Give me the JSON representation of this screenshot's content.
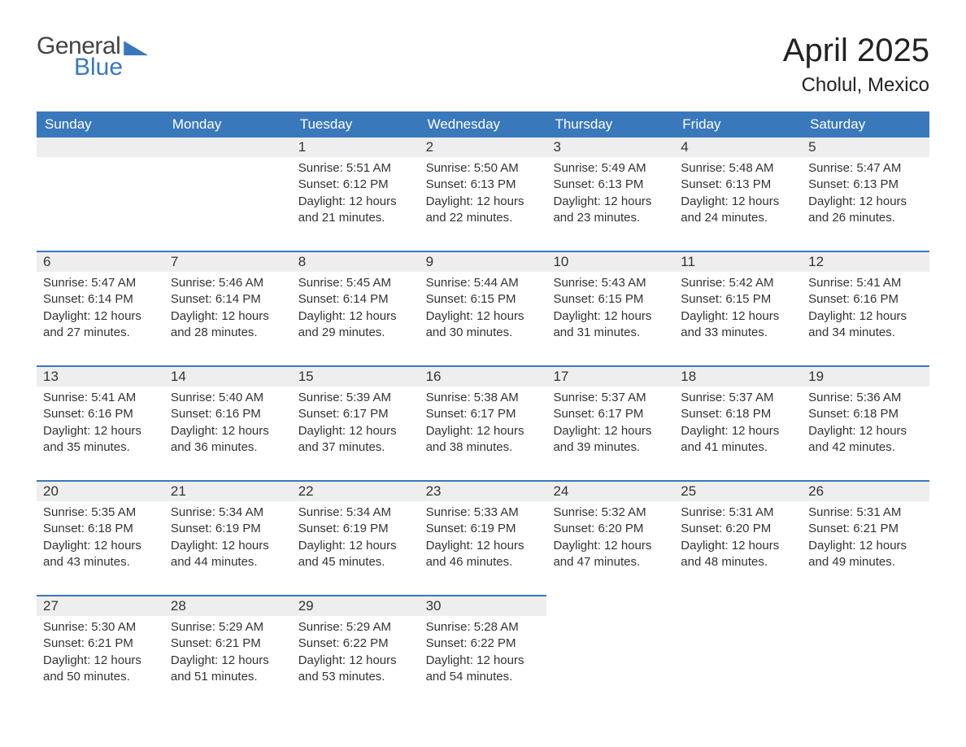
{
  "logo": {
    "line1": "General",
    "line2": "Blue"
  },
  "title": "April 2025",
  "location": "Cholul, Mexico",
  "colors": {
    "header_bg": "#3a78bc",
    "header_text": "#ffffff",
    "daynum_bg": "#eeeeee",
    "border": "#3a78bc",
    "text": "#333333",
    "title_color": "#222222",
    "page_bg": "#ffffff"
  },
  "font": {
    "family": "Arial",
    "title_size": 40,
    "location_size": 24,
    "header_size": 17,
    "cell_size": 15
  },
  "day_headers": [
    "Sunday",
    "Monday",
    "Tuesday",
    "Wednesday",
    "Thursday",
    "Friday",
    "Saturday"
  ],
  "weeks": [
    [
      {
        "day": "",
        "sunrise": "",
        "sunset": "",
        "daylight": "",
        "empty": true
      },
      {
        "day": "",
        "sunrise": "",
        "sunset": "",
        "daylight": "",
        "empty": true
      },
      {
        "day": "1",
        "sunrise": "Sunrise: 5:51 AM",
        "sunset": "Sunset: 6:12 PM",
        "daylight": "Daylight: 12 hours and 21 minutes."
      },
      {
        "day": "2",
        "sunrise": "Sunrise: 5:50 AM",
        "sunset": "Sunset: 6:13 PM",
        "daylight": "Daylight: 12 hours and 22 minutes."
      },
      {
        "day": "3",
        "sunrise": "Sunrise: 5:49 AM",
        "sunset": "Sunset: 6:13 PM",
        "daylight": "Daylight: 12 hours and 23 minutes."
      },
      {
        "day": "4",
        "sunrise": "Sunrise: 5:48 AM",
        "sunset": "Sunset: 6:13 PM",
        "daylight": "Daylight: 12 hours and 24 minutes."
      },
      {
        "day": "5",
        "sunrise": "Sunrise: 5:47 AM",
        "sunset": "Sunset: 6:13 PM",
        "daylight": "Daylight: 12 hours and 26 minutes."
      }
    ],
    [
      {
        "day": "6",
        "sunrise": "Sunrise: 5:47 AM",
        "sunset": "Sunset: 6:14 PM",
        "daylight": "Daylight: 12 hours and 27 minutes."
      },
      {
        "day": "7",
        "sunrise": "Sunrise: 5:46 AM",
        "sunset": "Sunset: 6:14 PM",
        "daylight": "Daylight: 12 hours and 28 minutes."
      },
      {
        "day": "8",
        "sunrise": "Sunrise: 5:45 AM",
        "sunset": "Sunset: 6:14 PM",
        "daylight": "Daylight: 12 hours and 29 minutes."
      },
      {
        "day": "9",
        "sunrise": "Sunrise: 5:44 AM",
        "sunset": "Sunset: 6:15 PM",
        "daylight": "Daylight: 12 hours and 30 minutes."
      },
      {
        "day": "10",
        "sunrise": "Sunrise: 5:43 AM",
        "sunset": "Sunset: 6:15 PM",
        "daylight": "Daylight: 12 hours and 31 minutes."
      },
      {
        "day": "11",
        "sunrise": "Sunrise: 5:42 AM",
        "sunset": "Sunset: 6:15 PM",
        "daylight": "Daylight: 12 hours and 33 minutes."
      },
      {
        "day": "12",
        "sunrise": "Sunrise: 5:41 AM",
        "sunset": "Sunset: 6:16 PM",
        "daylight": "Daylight: 12 hours and 34 minutes."
      }
    ],
    [
      {
        "day": "13",
        "sunrise": "Sunrise: 5:41 AM",
        "sunset": "Sunset: 6:16 PM",
        "daylight": "Daylight: 12 hours and 35 minutes."
      },
      {
        "day": "14",
        "sunrise": "Sunrise: 5:40 AM",
        "sunset": "Sunset: 6:16 PM",
        "daylight": "Daylight: 12 hours and 36 minutes."
      },
      {
        "day": "15",
        "sunrise": "Sunrise: 5:39 AM",
        "sunset": "Sunset: 6:17 PM",
        "daylight": "Daylight: 12 hours and 37 minutes."
      },
      {
        "day": "16",
        "sunrise": "Sunrise: 5:38 AM",
        "sunset": "Sunset: 6:17 PM",
        "daylight": "Daylight: 12 hours and 38 minutes."
      },
      {
        "day": "17",
        "sunrise": "Sunrise: 5:37 AM",
        "sunset": "Sunset: 6:17 PM",
        "daylight": "Daylight: 12 hours and 39 minutes."
      },
      {
        "day": "18",
        "sunrise": "Sunrise: 5:37 AM",
        "sunset": "Sunset: 6:18 PM",
        "daylight": "Daylight: 12 hours and 41 minutes."
      },
      {
        "day": "19",
        "sunrise": "Sunrise: 5:36 AM",
        "sunset": "Sunset: 6:18 PM",
        "daylight": "Daylight: 12 hours and 42 minutes."
      }
    ],
    [
      {
        "day": "20",
        "sunrise": "Sunrise: 5:35 AM",
        "sunset": "Sunset: 6:18 PM",
        "daylight": "Daylight: 12 hours and 43 minutes."
      },
      {
        "day": "21",
        "sunrise": "Sunrise: 5:34 AM",
        "sunset": "Sunset: 6:19 PM",
        "daylight": "Daylight: 12 hours and 44 minutes."
      },
      {
        "day": "22",
        "sunrise": "Sunrise: 5:34 AM",
        "sunset": "Sunset: 6:19 PM",
        "daylight": "Daylight: 12 hours and 45 minutes."
      },
      {
        "day": "23",
        "sunrise": "Sunrise: 5:33 AM",
        "sunset": "Sunset: 6:19 PM",
        "daylight": "Daylight: 12 hours and 46 minutes."
      },
      {
        "day": "24",
        "sunrise": "Sunrise: 5:32 AM",
        "sunset": "Sunset: 6:20 PM",
        "daylight": "Daylight: 12 hours and 47 minutes."
      },
      {
        "day": "25",
        "sunrise": "Sunrise: 5:31 AM",
        "sunset": "Sunset: 6:20 PM",
        "daylight": "Daylight: 12 hours and 48 minutes."
      },
      {
        "day": "26",
        "sunrise": "Sunrise: 5:31 AM",
        "sunset": "Sunset: 6:21 PM",
        "daylight": "Daylight: 12 hours and 49 minutes."
      }
    ],
    [
      {
        "day": "27",
        "sunrise": "Sunrise: 5:30 AM",
        "sunset": "Sunset: 6:21 PM",
        "daylight": "Daylight: 12 hours and 50 minutes."
      },
      {
        "day": "28",
        "sunrise": "Sunrise: 5:29 AM",
        "sunset": "Sunset: 6:21 PM",
        "daylight": "Daylight: 12 hours and 51 minutes."
      },
      {
        "day": "29",
        "sunrise": "Sunrise: 5:29 AM",
        "sunset": "Sunset: 6:22 PM",
        "daylight": "Daylight: 12 hours and 53 minutes."
      },
      {
        "day": "30",
        "sunrise": "Sunrise: 5:28 AM",
        "sunset": "Sunset: 6:22 PM",
        "daylight": "Daylight: 12 hours and 54 minutes."
      },
      {
        "day": "",
        "sunrise": "",
        "sunset": "",
        "daylight": "",
        "empty": true,
        "noborder": true
      },
      {
        "day": "",
        "sunrise": "",
        "sunset": "",
        "daylight": "",
        "empty": true,
        "noborder": true
      },
      {
        "day": "",
        "sunrise": "",
        "sunset": "",
        "daylight": "",
        "empty": true,
        "noborder": true
      }
    ]
  ]
}
